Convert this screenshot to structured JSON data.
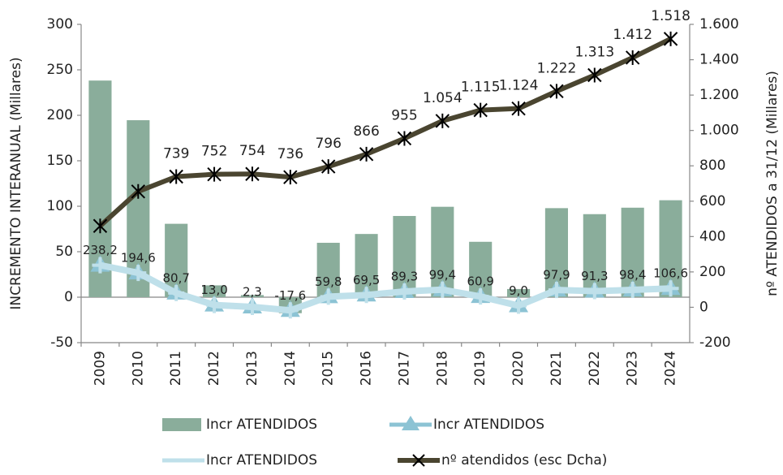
{
  "chart_data": {
    "type": "combo",
    "y_label": "INCREMENTO INTERANUAL (Millares)",
    "y2_label": "nº ATENDIDOS a 31/12 (Millares)",
    "categories": [
      "2009",
      "2010",
      "2011",
      "2012",
      "2013",
      "2014",
      "2015",
      "2016",
      "2017",
      "2018",
      "2019",
      "2020",
      "2021",
      "2022",
      "2023",
      "2024"
    ],
    "ylim": [
      -50,
      300
    ],
    "yticks": [
      -50,
      0,
      50,
      100,
      150,
      200,
      250,
      300
    ],
    "y2lim": [
      -200,
      1600
    ],
    "y2ticks": [
      -200,
      0,
      200,
      400,
      600,
      800,
      {
        "value": 1000,
        "label": "1.000"
      },
      {
        "value": 1200,
        "label": "1.200"
      },
      {
        "value": 1400,
        "label": "1.400"
      },
      {
        "value": 1600,
        "label": "1.600"
      }
    ],
    "series": [
      {
        "name": "Incr ATENDIDOS",
        "type": "bar",
        "color": "#8aad9b",
        "values": [
          238.2,
          194.6,
          80.7,
          13.0,
          2.3,
          -17.6,
          59.8,
          69.5,
          89.3,
          99.4,
          60.9,
          9.0,
          97.9,
          91.3,
          98.4,
          106.6
        ],
        "value_labels": [
          "238,2",
          "194,6",
          "80,7",
          "13,0",
          "2,3",
          "-17,6",
          "59,8",
          "69,5",
          "89,3",
          "99,4",
          "60,9",
          "9,0",
          "97,9",
          "91,3",
          "98,4",
          "106,6"
        ]
      },
      {
        "name": "Incr ATENDIDOS",
        "type": "line-triangle",
        "axis": "y2",
        "color": "#8cc3d4",
        "values": [
          238.2,
          194.6,
          80.7,
          13.0,
          2.3,
          -17.6,
          59.8,
          69.5,
          89.3,
          99.4,
          60.9,
          9.0,
          97.9,
          91.3,
          98.4,
          106.6
        ]
      },
      {
        "name": "Incr ATENDIDOS",
        "type": "line-star",
        "axis": "y2",
        "color": "#bfe0ea",
        "values": [
          238.2,
          194.6,
          80.7,
          13.0,
          2.3,
          -17.6,
          59.8,
          69.5,
          89.3,
          99.4,
          60.9,
          9.0,
          97.9,
          91.3,
          98.4,
          106.6
        ]
      },
      {
        "name": "nº atendidos (esc Dcha)",
        "type": "line-x",
        "axis": "y2",
        "color": "#4a4530",
        "values": [
          460,
          655,
          739,
          752,
          754,
          736,
          796,
          866,
          955,
          1054,
          1115,
          1124,
          1222,
          1313,
          1412,
          1518
        ],
        "value_labels": [
          null,
          null,
          "739",
          "752",
          "754",
          "736",
          "796",
          "866",
          "955",
          "1.054",
          "1.115",
          "1.124",
          "1.222",
          "1.313",
          "1.412",
          "1.518"
        ]
      }
    ]
  }
}
